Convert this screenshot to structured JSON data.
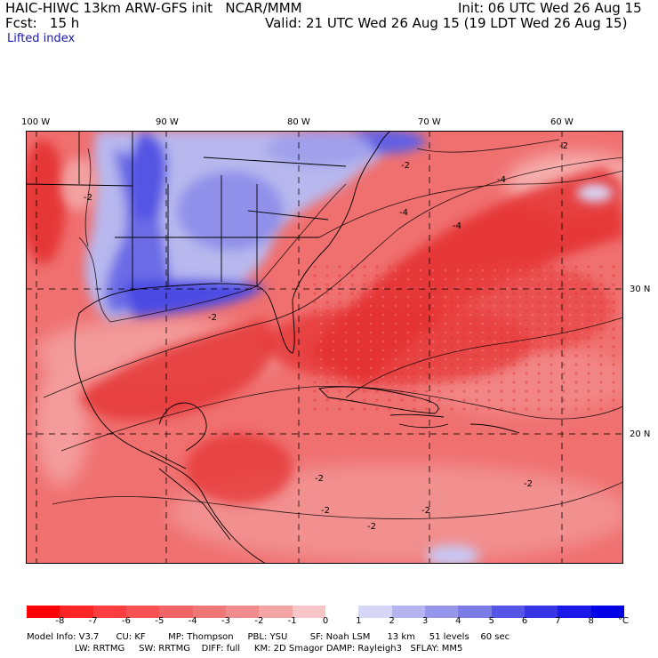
{
  "header": {
    "model": "HAIC-HIWC 13km ARW-GFS init   NCAR/MMM",
    "init": "Init: 06 UTC Wed 26 Aug 15",
    "fcst": "Fcst:   15 h",
    "valid": "Valid: 21 UTC Wed 26 Aug 15 (19 LDT Wed 26 Aug 15)",
    "field": "Lifted index"
  },
  "map": {
    "lon_labels": [
      "100 W",
      "90 W",
      "80 W",
      "70 W",
      "60 W"
    ],
    "lat_labels": [
      "30 N",
      "20 N"
    ],
    "contour_labels": [
      "-2",
      "-2",
      "-2",
      "-2",
      "-4",
      "-4",
      "-4",
      "-2",
      "-2",
      "-2",
      "-2",
      "-2"
    ]
  },
  "colorbar": {
    "ticks": [
      "-8",
      "-7",
      "-6",
      "-5",
      "-4",
      "-3",
      "-2",
      "-1",
      "0",
      "1",
      "2",
      "3",
      "4",
      "5",
      "6",
      "7",
      "8"
    ],
    "unit": "°C",
    "colors": [
      "#ff0000",
      "#ff2626",
      "#ff3f3f",
      "#f85252",
      "#f06565",
      "#ee7878",
      "#f08c8c",
      "#f4a4a4",
      "#f8c6c6",
      "#ffffff",
      "#d6d6f8",
      "#b4b4f0",
      "#9696ea",
      "#7c7ce6",
      "#5656e6",
      "#3636e6",
      "#1a1ae8",
      "#0000e6"
    ]
  },
  "info": {
    "line1": "Model Info: V3.7      CU: KF        MP: Thompson     PBL: YSU        SF: Noah LSM      13 km     51 levels    60 sec",
    "line2": "                 LW: RRTMG     SW: RRTMG    DIFF: full     KM: 2D Smagor DAMP: Rayleigh3   SFLAY: MM5"
  }
}
